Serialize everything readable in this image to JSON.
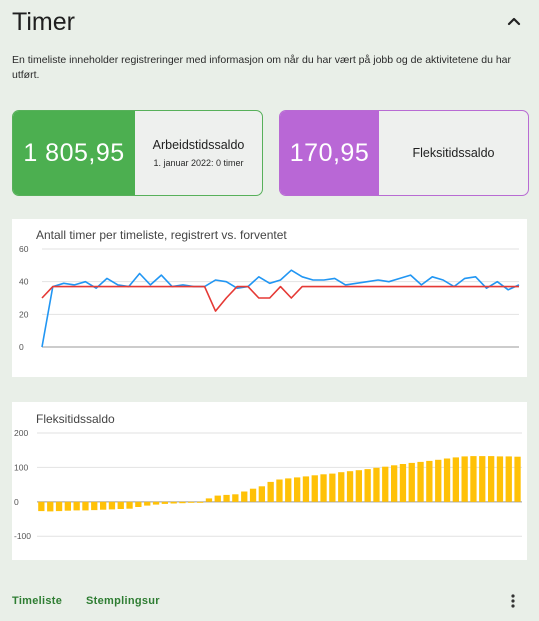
{
  "header": {
    "title": "Timer",
    "description": "En timeliste inneholder registreringer med informasjon om når du har vært på jobb og de aktivitetene du har utført."
  },
  "cards": {
    "work": {
      "value": "1 805,95",
      "label": "Arbeidstidssaldo",
      "sub": "1. januar 2022: 0 timer",
      "color": "#4caf50"
    },
    "flex": {
      "value": "170,95",
      "label": "Fleksitidssaldo",
      "color": "#b967d6"
    }
  },
  "footer": {
    "timeliste_label": "Timeliste",
    "stemplingsur_label": "Stemplingsur",
    "more_icon": "more-vert-icon"
  },
  "chart_data": [
    {
      "type": "line",
      "title": "Antall timer per timeliste, registrert vs. forventet",
      "ylim": [
        0,
        60
      ],
      "yticks": [
        0,
        20,
        40,
        60
      ],
      "grid": true,
      "series": [
        {
          "color": "#2196f3",
          "values": [
            0,
            37,
            39,
            38,
            40,
            36,
            42,
            38,
            37,
            45,
            38,
            44,
            37,
            38,
            37,
            37,
            41,
            40,
            36,
            37,
            43,
            39,
            41,
            47,
            43,
            41,
            41,
            42,
            38,
            39,
            40,
            41,
            40,
            42,
            44,
            38,
            43,
            41,
            37,
            42,
            43,
            36,
            40,
            35,
            38
          ]
        },
        {
          "color": "#e53935",
          "values": [
            30,
            37,
            37,
            37,
            37,
            37,
            37,
            37,
            37,
            37,
            37,
            37,
            37,
            37,
            37,
            37,
            22,
            30,
            37,
            37,
            30,
            30,
            37,
            30,
            37,
            37,
            37,
            37,
            37,
            37,
            37,
            37,
            37,
            37,
            37,
            37,
            37,
            37,
            37,
            37,
            37,
            37,
            37,
            37,
            37
          ]
        }
      ]
    },
    {
      "type": "bar",
      "title": "Fleksitidssaldo",
      "ylim": [
        -140,
        200
      ],
      "yticks": [
        -100,
        0,
        100,
        200
      ],
      "grid": true,
      "color": "#ffc107",
      "values": [
        -27,
        -28,
        -27,
        -26,
        -25,
        -25,
        -24,
        -23,
        -22,
        -21,
        -20,
        -15,
        -11,
        -8,
        -6,
        -5,
        -4,
        -3,
        -2,
        10,
        18,
        20,
        22,
        30,
        38,
        45,
        58,
        65,
        68,
        71,
        74,
        77,
        80,
        82,
        86,
        89,
        92,
        95,
        99,
        102,
        106,
        110,
        113,
        116,
        119,
        122,
        126,
        129,
        132,
        133,
        133,
        133,
        132,
        132,
        131
      ]
    }
  ]
}
